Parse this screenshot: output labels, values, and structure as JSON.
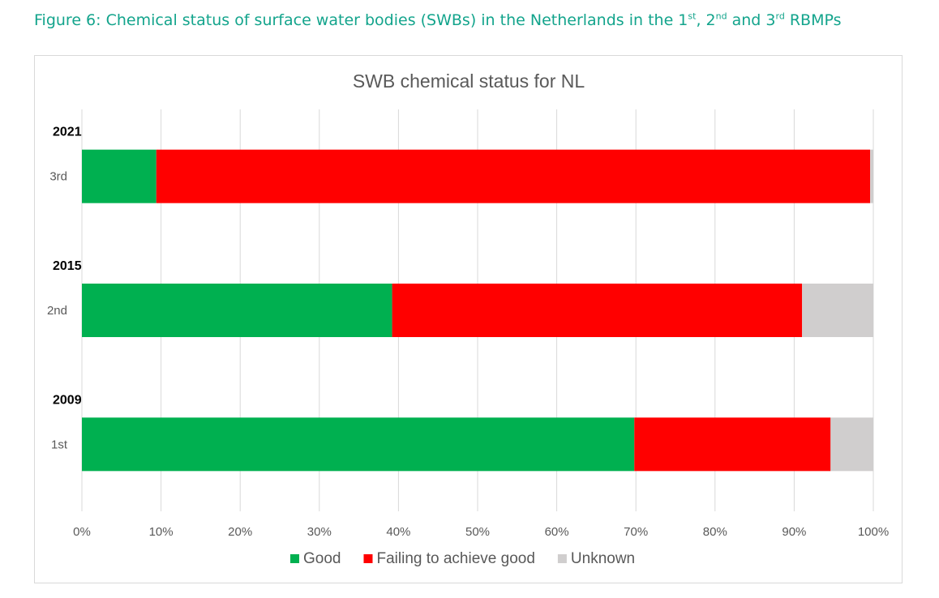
{
  "figure_caption": {
    "prefix": "Figure 6: Chemical status of surface water bodies (SWBs) in the Netherlands in the 1",
    "sup1": "st",
    "mid1": ", 2",
    "sup2": "nd",
    "mid2": " and 3",
    "sup3": "rd",
    "suffix": " RBMPs"
  },
  "colors": {
    "caption": "#13a48c",
    "good": "#00b050",
    "failing": "#ff0000",
    "unknown": "#d0cece",
    "grid": "#d9d9d9",
    "axis_text": "#595959"
  },
  "chart_data": {
    "type": "bar",
    "orientation": "horizontal",
    "stacked": true,
    "percent_stacked": true,
    "title": "SWB chemical status for NL",
    "categories": [
      "3rd",
      "2nd",
      "1st"
    ],
    "year_labels": [
      "2021",
      "2015",
      "2009"
    ],
    "series": [
      {
        "name": "Good",
        "color": "#00b050",
        "values": [
          9.4,
          39.2,
          69.8
        ]
      },
      {
        "name": "Failing to achieve good",
        "color": "#ff0000",
        "values": [
          90.2,
          51.8,
          24.8
        ]
      },
      {
        "name": "Unknown",
        "color": "#d0cece",
        "values": [
          0.4,
          9.0,
          5.4
        ]
      }
    ],
    "xlim": [
      0,
      100
    ],
    "xticks": [
      "0%",
      "10%",
      "20%",
      "30%",
      "40%",
      "50%",
      "60%",
      "70%",
      "80%",
      "90%",
      "100%"
    ],
    "grid": "vertical",
    "legend_position": "bottom"
  }
}
